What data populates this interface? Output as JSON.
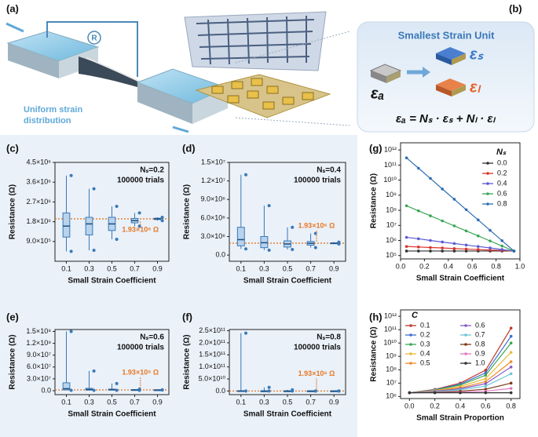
{
  "figure": {
    "a_label": "(a)",
    "resistor": "R",
    "strain_text": [
      "Uniform strain",
      "distribution"
    ],
    "b_label": "(b)",
    "unit_title": "Smallest Strain Unit",
    "eps_s": "εₛ",
    "eps_l": "εₗ",
    "eps_a": "εₐ",
    "equation": "εₐ = Nₛ · εₛ + Nₗ · εₗ"
  },
  "chart_data": [
    {
      "type": "box",
      "panel": "(c)",
      "ylabel": "Resistance (Ω)",
      "xlabel": "Small Strain Coefficient",
      "categories": [
        "0.1",
        "0.3",
        "0.5",
        "0.7",
        "0.9"
      ],
      "min": [
        450000,
        500000,
        1000000,
        1600000,
        1850000
      ],
      "q1": [
        1100000,
        1200000,
        1400000,
        1750000,
        1900000
      ],
      "median": [
        1600000,
        1700000,
        1700000,
        1850000,
        1930000
      ],
      "q3": [
        2200000,
        2000000,
        2000000,
        1950000,
        1960000
      ],
      "max": [
        3900000,
        3300000,
        2500000,
        2200000,
        2000000
      ],
      "ylim": [
        0,
        4500000
      ],
      "yticks": [
        {
          "value": 900000,
          "label": "9.0×10⁵"
        },
        {
          "value": 1800000,
          "label": "1.8×10⁶"
        },
        {
          "value": 2700000,
          "label": "2.7×10⁶"
        },
        {
          "value": 3600000,
          "label": "3.6×10⁶"
        },
        {
          "value": 4500000,
          "label": "4.5×10⁶"
        }
      ],
      "notes": [
        "Nₛ=0.2",
        "100000 trials"
      ],
      "reference": {
        "value": 1930000,
        "label": "1.93×10⁶ Ω"
      },
      "color": "#3a78b8",
      "ref_color": "#e87722"
    },
    {
      "type": "box",
      "panel": "(d)",
      "ylabel": "Resistance (Ω)",
      "xlabel": "Small Strain Coefficient",
      "categories": [
        "0.1",
        "0.3",
        "0.5",
        "0.7",
        "0.9"
      ],
      "min": [
        1000000,
        800000,
        900000,
        1200000,
        1800000
      ],
      "q1": [
        1500000,
        1200000,
        1300000,
        1600000,
        1900000
      ],
      "median": [
        2500000,
        2000000,
        1800000,
        1900000,
        1930000
      ],
      "q3": [
        4500000,
        3000000,
        2300000,
        2200000,
        1960000
      ],
      "max": [
        13000000,
        8000000,
        4500000,
        3500000,
        2100000
      ],
      "ylim": [
        -1000000,
        15000000
      ],
      "yticks": [
        {
          "value": 0,
          "label": "0.0"
        },
        {
          "value": 3000000,
          "label": "3.0×10⁶"
        },
        {
          "value": 6000000,
          "label": "6.0×10⁶"
        },
        {
          "value": 9000000,
          "label": "9.0×10⁶"
        },
        {
          "value": 12000000,
          "label": "1.2×10⁷"
        },
        {
          "value": 15000000,
          "label": "1.5×10⁷"
        }
      ],
      "notes": [
        "Nₛ=0.4",
        "100000 trials"
      ],
      "reference": {
        "value": 1930000,
        "label": "1.93×10⁶ Ω"
      },
      "color": "#3a78b8",
      "ref_color": "#e87722"
    },
    {
      "type": "box",
      "panel": "(e)",
      "ylabel": "Resistance (Ω)",
      "xlabel": "Small Strain Coefficient",
      "categories": [
        "0.1",
        "0.3",
        "0.5",
        "0.7",
        "0.9"
      ],
      "min": [
        1000000,
        1000000,
        1000000,
        1000000,
        1800000
      ],
      "q1": [
        2000000,
        1500000,
        1500000,
        1600000,
        1900000
      ],
      "median": [
        5000000,
        3000000,
        2500000,
        2000000,
        1930000
      ],
      "q3": [
        20000000,
        6000000,
        4000000,
        2500000,
        1960000
      ],
      "max": [
        150000000,
        50000000,
        18000000,
        4000000,
        2100000
      ],
      "ylim": [
        -10000000,
        155000000
      ],
      "yticks": [
        {
          "value": 0,
          "label": "0.0"
        },
        {
          "value": 30000000,
          "label": "3.0×10⁷"
        },
        {
          "value": 60000000,
          "label": "6.0×10⁷"
        },
        {
          "value": 90000000,
          "label": "9.0×10⁷"
        },
        {
          "value": 120000000,
          "label": "1.2×10⁸"
        },
        {
          "value": 150000000,
          "label": "1.5×10⁸"
        }
      ],
      "notes": [
        "Nₛ=0.6",
        "100000 trials"
      ],
      "reference": {
        "value": 1930000,
        "label": "1.93×10⁶ Ω"
      },
      "color": "#3a78b8",
      "ref_color": "#e87722"
    },
    {
      "type": "box",
      "panel": "(f)",
      "ylabel": "Resistance (Ω)",
      "xlabel": "Small Strain Coefficient",
      "categories": [
        "0.1",
        "0.3",
        "0.5",
        "0.7",
        "0.9"
      ],
      "min": [
        1000000,
        1000000,
        1000000,
        1000000,
        1800000
      ],
      "q1": [
        10000000,
        2000000,
        2000000,
        1600000,
        1900000
      ],
      "median": [
        100000000,
        5000000,
        3000000,
        2000000,
        1930000
      ],
      "q3": [
        1000000000,
        20000000,
        5000000,
        2500000,
        1960000
      ],
      "max": [
        240000000000,
        15000000000,
        5000000000,
        4000000,
        2100000
      ],
      "ylim": [
        -15000000000,
        255000000000
      ],
      "yticks": [
        {
          "value": 0,
          "label": "0.0"
        },
        {
          "value": 50000000000,
          "label": "5.0×10¹⁰"
        },
        {
          "value": 100000000000,
          "label": "1.0×10¹¹"
        },
        {
          "value": 150000000000,
          "label": "1.5×10¹¹"
        },
        {
          "value": 200000000000,
          "label": "2.0×10¹¹"
        },
        {
          "value": 250000000000,
          "label": "2.5×10¹¹"
        }
      ],
      "notes": [
        "Nₛ=0.8",
        "100000 trials"
      ],
      "reference": {
        "value": 1930000,
        "label": "1.93×10⁶ Ω"
      },
      "color": "#3a78b8",
      "ref_color": "#e87722"
    },
    {
      "type": "line",
      "panel": "(g)",
      "ylabel": "Resistance (Ω)",
      "xlabel": "Small Strain Coefficient",
      "log_y": true,
      "legend_title": "Nₛ",
      "legend": "right",
      "x": [
        0.05,
        0.15,
        0.25,
        0.35,
        0.45,
        0.55,
        0.65,
        0.75,
        0.85,
        0.95
      ],
      "xlim": [
        0,
        1
      ],
      "xticks": [
        {
          "value": 0,
          "label": "0.0"
        },
        0.2,
        0.4,
        0.6,
        0.8,
        {
          "value": 1,
          "label": "1.0"
        }
      ],
      "ylim": [
        60000,
        3000000000000
      ],
      "yticks": [
        {
          "value": 100000,
          "label": "10⁵"
        },
        {
          "value": 1000000,
          "label": "10⁶"
        },
        {
          "value": 10000000,
          "label": "10⁷"
        },
        {
          "value": 100000000,
          "label": "10⁸"
        },
        {
          "value": 1000000000,
          "label": "10⁹"
        },
        {
          "value": 10000000000,
          "label": "10¹⁰"
        },
        {
          "value": 100000000000,
          "label": "10¹¹"
        },
        {
          "value": 1000000000000,
          "label": "10¹²"
        }
      ],
      "series": [
        {
          "name": "0.0",
          "color": "#333333",
          "values": [
            200000,
            200000,
            200000,
            200000,
            200000,
            200000,
            200000,
            200000,
            200000,
            200000
          ]
        },
        {
          "name": "0.2",
          "color": "#d9342b",
          "values": [
            400000,
            370000,
            340000,
            320000,
            290000,
            270000,
            250000,
            230000,
            220000,
            200000
          ]
        },
        {
          "name": "0.4",
          "color": "#5a5ad6",
          "values": [
            1600000,
            1300000,
            1000000,
            790000,
            630000,
            500000,
            400000,
            320000,
            250000,
            200000
          ]
        },
        {
          "name": "0.6",
          "color": "#3aa655",
          "values": [
            200000000,
            93000000,
            43000000,
            20000000,
            9300000,
            4300000,
            2000000,
            930000,
            430000,
            200000
          ]
        },
        {
          "name": "0.8",
          "color": "#2f6fb3",
          "values": [
            300000000000,
            62000000000,
            13000000000,
            2600000000,
            540000000,
            110000000,
            23000000,
            4700000,
            970000,
            200000
          ]
        }
      ]
    },
    {
      "type": "line",
      "panel": "(h)",
      "ylabel": "Resistance (Ω)",
      "xlabel": "Small Strain Proportion",
      "log_y": true,
      "legend_title": "C",
      "legend": "upper left",
      "x": [
        0,
        0.2,
        0.4,
        0.6,
        0.8
      ],
      "xlim": [
        -0.07,
        0.87
      ],
      "xticks": [
        {
          "value": 0,
          "label": "0.0"
        },
        0.2,
        0.4,
        0.6,
        0.8
      ],
      "ylim": [
        700000,
        3000000000000
      ],
      "yticks": [
        {
          "value": 1000000,
          "label": "10⁶"
        },
        {
          "value": 10000000,
          "label": "10⁷"
        },
        {
          "value": 100000000,
          "label": "10⁸"
        },
        {
          "value": 1000000000,
          "label": "10⁹"
        },
        {
          "value": 10000000000,
          "label": "10¹⁰"
        },
        {
          "value": 100000000000,
          "label": "10¹¹"
        },
        {
          "value": 1000000000000,
          "label": "10¹²"
        }
      ],
      "series": [
        {
          "name": "0.1",
          "color": "#c0392b",
          "values": [
            1900000,
            3400000,
            10000000,
            93000000,
            130000000000
          ]
        },
        {
          "name": "0.2",
          "color": "#3f6fd1",
          "values": [
            1900000,
            3200000,
            8300000,
            58000000,
            32000000000
          ]
        },
        {
          "name": "0.3",
          "color": "#3aa655",
          "values": [
            1900000,
            3000000,
            7100000,
            39000000,
            10000000000
          ]
        },
        {
          "name": "0.4",
          "color": "#e8b93a",
          "values": [
            1900000,
            2800000,
            5500000,
            22000000,
            2000000000
          ]
        },
        {
          "name": "0.5",
          "color": "#f08c28",
          "values": [
            1900000,
            2600000,
            4400000,
            13000000,
            400000000
          ]
        },
        {
          "name": "0.6",
          "color": "#8a5cc4",
          "values": [
            1900000,
            2500000,
            3800000,
            9100000,
            160000000
          ]
        },
        {
          "name": "0.7",
          "color": "#6dc6d8",
          "values": [
            1900000,
            2300000,
            3200000,
            6000000,
            50000000
          ]
        },
        {
          "name": "0.8",
          "color": "#7a3a1a",
          "values": [
            1900000,
            2100000,
            2500000,
            3500000,
            10000000
          ]
        },
        {
          "name": "0.9",
          "color": "#e07ac0",
          "values": [
            1900000,
            2000000,
            2100000,
            2500000,
            4000000
          ]
        },
        {
          "name": "1.0",
          "color": "#333333",
          "values": [
            1900000,
            1900000,
            1900000,
            1900000,
            1900000
          ]
        }
      ]
    }
  ]
}
